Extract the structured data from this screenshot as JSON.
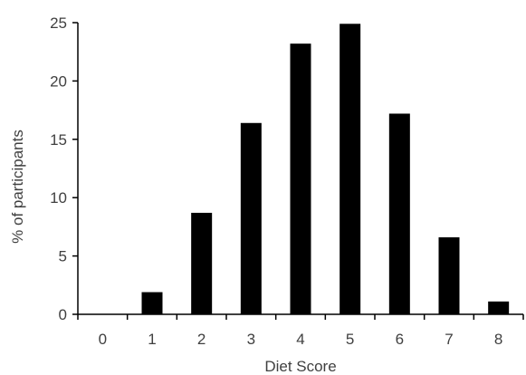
{
  "chart_data": {
    "type": "bar",
    "title": "",
    "xlabel": "Diet Score",
    "ylabel": "% of participants",
    "categories": [
      "0",
      "1",
      "2",
      "3",
      "4",
      "5",
      "6",
      "7",
      "8"
    ],
    "values": [
      0,
      1.9,
      8.7,
      16.4,
      23.2,
      24.9,
      17.2,
      6.6,
      1.1
    ],
    "ylim": [
      0,
      25
    ],
    "yticks": [
      "0",
      "5",
      "10",
      "15",
      "20",
      "25"
    ],
    "grid": false,
    "legend": "none",
    "colors": {
      "bar": "#000000",
      "axis": "#000000",
      "text": "#404040"
    }
  }
}
